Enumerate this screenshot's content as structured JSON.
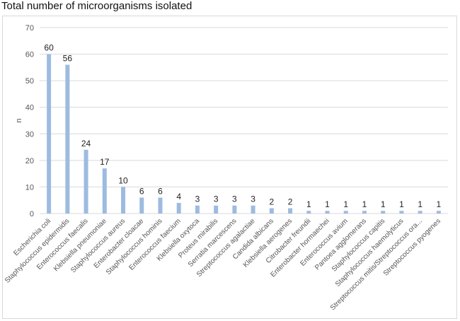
{
  "title": "Total number of microorganisms isolated",
  "colors": {
    "bar": "#9dbbe0",
    "grid": "#d9d9d9",
    "axis_text": "#555555",
    "label_text": "#222222"
  },
  "chart_data": {
    "type": "bar",
    "title": "Total number of microorganisms isolated",
    "xlabel": "",
    "ylabel": "n",
    "ylim": [
      0,
      70
    ],
    "yticks": [
      0,
      10,
      20,
      30,
      40,
      50,
      60,
      70
    ],
    "grid": true,
    "legend": "none",
    "categories": [
      "Escherichia coli",
      "Staphylococcus epidermidis",
      "Enterococcus faecalis",
      "Klebsiella pneumoniae",
      "Staphylococcus aureus",
      "Enterobacter cloacae",
      "Staphylococcus hominis",
      "Enterococcus faecium",
      "Klebsiella oxytoca",
      "Proteus mirabilis",
      "Serratia marcescens",
      "Streptococcus agalactiae",
      "Candida albicans",
      "Klebsiella aerogenes",
      "Citrobacter freundii",
      "Enterobacter hormaechei",
      "Enterococcus avium",
      "Pantoea agglomerans",
      "Staphylococcus capitis",
      "Staphylococcus haemolyticus",
      "Streptococcus mitis/Streptococcus ora...",
      "Streptococcus pyogenes"
    ],
    "values": [
      60,
      56,
      24,
      17,
      10,
      6,
      6,
      4,
      3,
      3,
      3,
      3,
      2,
      2,
      1,
      1,
      1,
      1,
      1,
      1,
      1,
      1
    ]
  }
}
